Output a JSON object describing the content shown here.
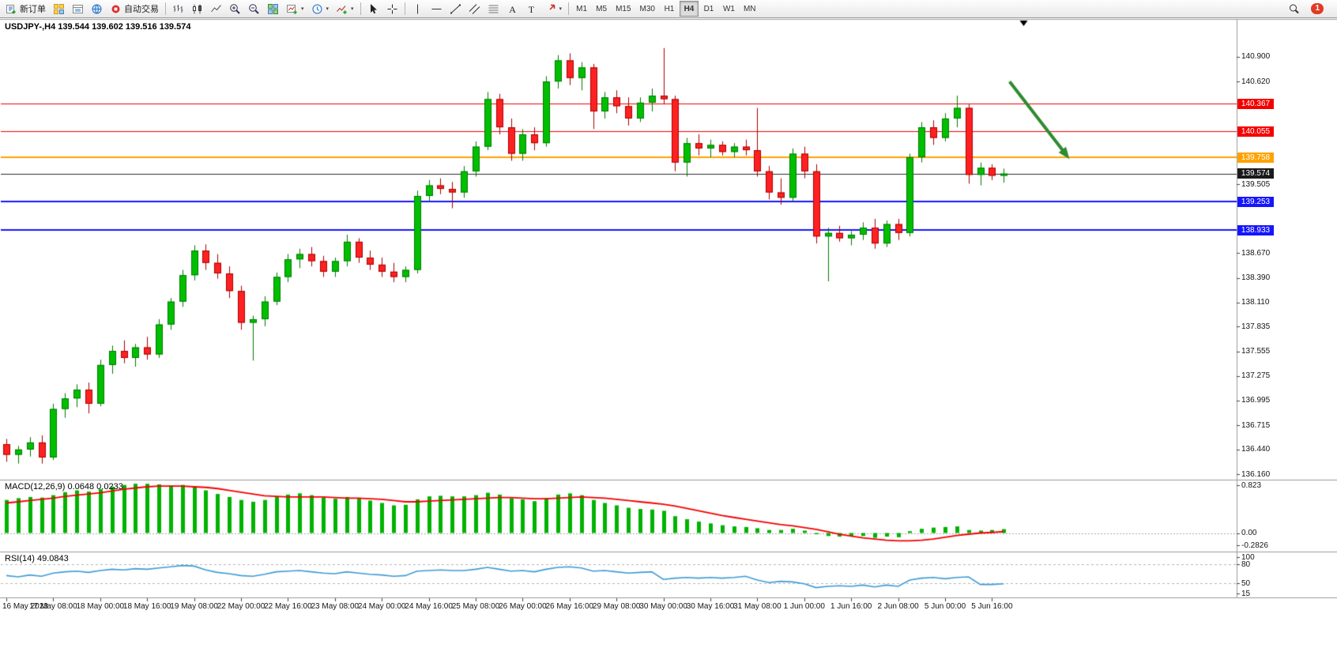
{
  "toolbar": {
    "new_order_label": "新订单",
    "autotrade_label": "自动交易",
    "timeframes": [
      "M1",
      "M5",
      "M15",
      "M30",
      "H1",
      "H4",
      "D1",
      "W1",
      "MN"
    ],
    "active_timeframe": "H4",
    "notification_count": "1",
    "icons": [
      "new-order",
      "market-watch",
      "data-window",
      "navigator",
      "autotrade",
      "bar-chart",
      "candlestick-chart",
      "line-chart",
      "zoom-in",
      "zoom-out",
      "tile-windows",
      "new-chart",
      "chart-profiles",
      "indicators",
      "cursor",
      "crosshair",
      "vertical-line",
      "horizontal-line",
      "trendline",
      "equidistant-channel",
      "fibonacci",
      "text",
      "text-label",
      "arrows",
      "search",
      "notifications"
    ]
  },
  "chart": {
    "title": "USDJPY-,H4 139.544 139.602 139.516 139.574",
    "symbol": "USDJPY-",
    "period": "H4",
    "open": "139.544",
    "high": "139.602",
    "low": "139.516",
    "close": "139.574"
  },
  "chart_data": {
    "type": "candlestick",
    "symbol": "USDJPY-",
    "timeframe": "H4",
    "price_axis_labels": [
      "140.900",
      "140.620",
      "139.505",
      "138.670",
      "138.390",
      "138.110",
      "137.835",
      "137.555",
      "137.275",
      "136.995",
      "136.715",
      "136.440",
      "136.160"
    ],
    "time_labels": [
      "16 May 2023",
      "17 May 08:00",
      "18 May 00:00",
      "18 May 16:00",
      "19 May 08:00",
      "22 May 00:00",
      "22 May 16:00",
      "23 May 08:00",
      "24 May 00:00",
      "24 May 16:00",
      "25 May 08:00",
      "26 May 00:00",
      "26 May 16:00",
      "29 May 08:00",
      "30 May 00:00",
      "30 May 16:00",
      "31 May 08:00",
      "1 Jun 00:00",
      "1 Jun 16:00",
      "2 Jun 08:00",
      "5 Jun 00:00",
      "5 Jun 16:00"
    ],
    "hlines": [
      {
        "price": "140.367",
        "label": "140.367",
        "color": "#f50000",
        "badge": "#f50000",
        "width": 1,
        "name": "resistance-line-badge-140367"
      },
      {
        "price": "140.055",
        "label": "140.055",
        "color": "#f50000",
        "badge": "#f50000",
        "width": 1,
        "name": "resistance-line-badge-140055"
      },
      {
        "price": "139.758",
        "label": "139.758",
        "color": "#ffa200",
        "badge": "#ffa200",
        "width": 2,
        "name": "pivot-line-badge-139758"
      },
      {
        "price": "139.574",
        "label": "139.574",
        "color": "#2b2b2b",
        "badge": "#1a1a1a",
        "width": 1,
        "name": "bid-price-badge"
      },
      {
        "price": "139.253",
        "label": "139.253",
        "color": "#1515ff",
        "badge": "#1515ff",
        "width": 2,
        "name": "support-line-badge-139253"
      },
      {
        "price": "138.933",
        "label": "138.933",
        "color": "#1515ff",
        "badge": "#1515ff",
        "width": 2,
        "name": "support-line-badge-138933"
      }
    ],
    "candles": [
      [
        136.5,
        136.56,
        136.3,
        136.38
      ],
      [
        136.38,
        136.48,
        136.28,
        136.44
      ],
      [
        136.44,
        136.58,
        136.36,
        136.52
      ],
      [
        136.52,
        136.6,
        136.28,
        136.35
      ],
      [
        136.35,
        136.96,
        136.32,
        136.9
      ],
      [
        136.9,
        137.08,
        136.8,
        137.02
      ],
      [
        137.02,
        137.18,
        136.92,
        137.12
      ],
      [
        137.12,
        137.2,
        136.85,
        136.96
      ],
      [
        136.96,
        137.46,
        136.93,
        137.4
      ],
      [
        137.4,
        137.62,
        137.3,
        137.56
      ],
      [
        137.56,
        137.68,
        137.42,
        137.48
      ],
      [
        137.48,
        137.64,
        137.38,
        137.6
      ],
      [
        137.6,
        137.72,
        137.46,
        137.52
      ],
      [
        137.52,
        137.92,
        137.48,
        137.86
      ],
      [
        137.86,
        138.16,
        137.8,
        138.12
      ],
      [
        138.12,
        138.48,
        138.06,
        138.42
      ],
      [
        138.42,
        138.76,
        138.36,
        138.7
      ],
      [
        138.7,
        138.77,
        138.48,
        138.56
      ],
      [
        138.56,
        138.66,
        138.38,
        138.44
      ],
      [
        138.44,
        138.52,
        138.16,
        138.24
      ],
      [
        138.24,
        138.3,
        137.8,
        137.88
      ],
      [
        137.88,
        137.96,
        137.45,
        137.92
      ],
      [
        137.92,
        138.18,
        137.84,
        138.12
      ],
      [
        138.12,
        138.45,
        138.08,
        138.4
      ],
      [
        138.4,
        138.66,
        138.34,
        138.6
      ],
      [
        138.6,
        138.72,
        138.5,
        138.66
      ],
      [
        138.66,
        138.74,
        138.52,
        138.58
      ],
      [
        138.58,
        138.64,
        138.4,
        138.46
      ],
      [
        138.46,
        138.62,
        138.4,
        138.58
      ],
      [
        138.58,
        138.88,
        138.52,
        138.8
      ],
      [
        138.8,
        138.84,
        138.56,
        138.62
      ],
      [
        138.62,
        138.7,
        138.48,
        138.54
      ],
      [
        138.54,
        138.62,
        138.4,
        138.46
      ],
      [
        138.46,
        138.56,
        138.34,
        138.4
      ],
      [
        138.4,
        138.52,
        138.34,
        138.48
      ],
      [
        138.48,
        139.38,
        138.44,
        139.32
      ],
      [
        139.32,
        139.5,
        139.26,
        139.44
      ],
      [
        139.44,
        139.52,
        139.34,
        139.4
      ],
      [
        139.4,
        139.48,
        139.18,
        139.36
      ],
      [
        139.36,
        139.66,
        139.3,
        139.6
      ],
      [
        139.6,
        139.94,
        139.54,
        139.88
      ],
      [
        139.88,
        140.5,
        139.84,
        140.42
      ],
      [
        140.42,
        140.48,
        140.02,
        140.1
      ],
      [
        140.1,
        140.2,
        139.72,
        139.8
      ],
      [
        139.8,
        140.08,
        139.72,
        140.02
      ],
      [
        140.02,
        140.1,
        139.84,
        139.92
      ],
      [
        139.92,
        140.68,
        139.88,
        140.62
      ],
      [
        140.62,
        140.92,
        140.54,
        140.86
      ],
      [
        140.86,
        140.94,
        140.58,
        140.66
      ],
      [
        140.66,
        140.84,
        140.52,
        140.78
      ],
      [
        140.78,
        140.82,
        140.08,
        140.28
      ],
      [
        140.28,
        140.5,
        140.2,
        140.44
      ],
      [
        140.44,
        140.52,
        140.26,
        140.34
      ],
      [
        140.34,
        140.44,
        140.12,
        140.2
      ],
      [
        140.2,
        140.44,
        140.16,
        140.38
      ],
      [
        140.38,
        140.54,
        140.28,
        140.46
      ],
      [
        140.46,
        141.0,
        140.36,
        140.42
      ],
      [
        140.42,
        140.46,
        139.6,
        139.7
      ],
      [
        139.7,
        139.98,
        139.54,
        139.92
      ],
      [
        139.92,
        140.02,
        139.78,
        139.86
      ],
      [
        139.86,
        139.96,
        139.76,
        139.9
      ],
      [
        139.9,
        139.94,
        139.78,
        139.82
      ],
      [
        139.82,
        139.92,
        139.76,
        139.88
      ],
      [
        139.88,
        139.96,
        139.78,
        139.84
      ],
      [
        139.84,
        140.32,
        139.54,
        139.6
      ],
      [
        139.6,
        139.66,
        139.28,
        139.36
      ],
      [
        139.36,
        139.52,
        139.22,
        139.3
      ],
      [
        139.3,
        139.86,
        139.26,
        139.8
      ],
      [
        139.8,
        139.88,
        139.52,
        139.6
      ],
      [
        139.6,
        139.68,
        138.78,
        138.86
      ],
      [
        138.86,
        138.96,
        138.35,
        138.9
      ],
      [
        138.9,
        138.98,
        138.8,
        138.84
      ],
      [
        138.84,
        138.92,
        138.76,
        138.88
      ],
      [
        138.88,
        139.02,
        138.82,
        138.96
      ],
      [
        138.96,
        139.06,
        138.72,
        138.78
      ],
      [
        138.78,
        139.04,
        138.74,
        139.0
      ],
      [
        139.0,
        139.06,
        138.82,
        138.9
      ],
      [
        138.9,
        139.8,
        138.86,
        139.76
      ],
      [
        139.76,
        140.16,
        139.7,
        140.1
      ],
      [
        140.1,
        140.18,
        139.9,
        139.98
      ],
      [
        139.98,
        140.26,
        139.94,
        140.2
      ],
      [
        140.2,
        140.46,
        140.1,
        140.32
      ],
      [
        140.32,
        140.36,
        139.46,
        139.56
      ],
      [
        139.56,
        139.7,
        139.44,
        139.64
      ],
      [
        139.64,
        139.68,
        139.5,
        139.55
      ],
      [
        139.55,
        139.63,
        139.47,
        139.574
      ]
    ],
    "arrow": {
      "from_index": 85.5,
      "from_price": 140.62,
      "to_index": 90.6,
      "to_price": 139.74,
      "color": "#2e8b2e"
    },
    "shift_marker_index": 86.7,
    "macd": {
      "label": "MACD(12,26,9) 0.0648 0.0233",
      "axis_labels": [
        "0.823",
        "0.00",
        "-0.2826"
      ],
      "hist_color": "#00b300",
      "signal_color": "#f50000",
      "histogram": [
        0.55,
        0.58,
        0.6,
        0.59,
        0.63,
        0.68,
        0.71,
        0.69,
        0.73,
        0.77,
        0.8,
        0.82,
        0.82,
        0.81,
        0.79,
        0.8,
        0.77,
        0.71,
        0.65,
        0.6,
        0.55,
        0.52,
        0.55,
        0.61,
        0.64,
        0.66,
        0.63,
        0.59,
        0.57,
        0.6,
        0.58,
        0.54,
        0.5,
        0.46,
        0.47,
        0.56,
        0.61,
        0.62,
        0.61,
        0.61,
        0.63,
        0.67,
        0.64,
        0.58,
        0.56,
        0.53,
        0.58,
        0.64,
        0.66,
        0.63,
        0.55,
        0.5,
        0.46,
        0.42,
        0.4,
        0.39,
        0.37,
        0.28,
        0.23,
        0.19,
        0.16,
        0.13,
        0.11,
        0.1,
        0.08,
        0.05,
        0.05,
        0.07,
        0.04,
        -0.02,
        -0.05,
        -0.06,
        -0.06,
        -0.05,
        -0.08,
        -0.06,
        -0.07,
        0.03,
        0.07,
        0.09,
        0.1,
        0.11,
        0.05,
        0.04,
        0.05,
        0.0648
      ],
      "signal": [
        0.5,
        0.52,
        0.54,
        0.56,
        0.58,
        0.61,
        0.63,
        0.65,
        0.67,
        0.7,
        0.73,
        0.75,
        0.77,
        0.78,
        0.78,
        0.78,
        0.77,
        0.76,
        0.74,
        0.71,
        0.68,
        0.65,
        0.62,
        0.61,
        0.6,
        0.6,
        0.6,
        0.6,
        0.59,
        0.58,
        0.58,
        0.57,
        0.56,
        0.54,
        0.52,
        0.52,
        0.53,
        0.54,
        0.55,
        0.56,
        0.57,
        0.58,
        0.59,
        0.59,
        0.58,
        0.57,
        0.57,
        0.58,
        0.59,
        0.6,
        0.59,
        0.58,
        0.56,
        0.54,
        0.52,
        0.5,
        0.48,
        0.45,
        0.41,
        0.37,
        0.33,
        0.29,
        0.26,
        0.23,
        0.2,
        0.17,
        0.14,
        0.12,
        0.09,
        0.06,
        0.02,
        -0.02,
        -0.05,
        -0.08,
        -0.1,
        -0.12,
        -0.13,
        -0.13,
        -0.12,
        -0.1,
        -0.07,
        -0.04,
        -0.02,
        0.0,
        0.01,
        0.0233
      ]
    },
    "rsi": {
      "label": "RSI(14) 49.0843",
      "axis_labels": [
        "100",
        "80",
        "50",
        "15"
      ],
      "levels": [
        80,
        50
      ],
      "color": "#3d9bd5",
      "values": [
        62,
        60,
        63,
        61,
        66,
        68,
        69,
        67,
        70,
        72,
        71,
        73,
        72,
        74,
        76,
        78,
        77,
        71,
        67,
        65,
        62,
        61,
        64,
        68,
        69,
        70,
        68,
        66,
        65,
        68,
        66,
        64,
        63,
        61,
        62,
        69,
        70,
        71,
        70,
        70,
        72,
        75,
        72,
        69,
        70,
        68,
        72,
        75,
        76,
        74,
        69,
        70,
        68,
        66,
        67,
        68,
        56,
        58,
        59,
        58,
        59,
        58,
        59,
        61,
        55,
        51,
        53,
        52,
        49,
        43,
        45,
        46,
        45,
        47,
        44,
        47,
        45,
        55,
        58,
        59,
        57,
        59,
        60,
        48,
        48,
        49.0843
      ]
    },
    "colors": {
      "bull": "#00bf00",
      "bull_edge": "#007a00",
      "bear": "#ff2121",
      "bear_edge": "#a80000",
      "bg": "#ffffff"
    }
  }
}
